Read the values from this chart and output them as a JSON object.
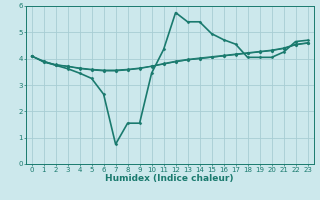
{
  "title": "",
  "xlabel": "Humidex (Indice chaleur)",
  "ylabel": "",
  "bg_color": "#cce8ec",
  "line_color": "#1a7a6e",
  "grid_color": "#a8cdd4",
  "xlim": [
    -0.5,
    23.5
  ],
  "ylim": [
    0,
    6
  ],
  "xticks": [
    0,
    1,
    2,
    3,
    4,
    5,
    6,
    7,
    8,
    9,
    10,
    11,
    12,
    13,
    14,
    15,
    16,
    17,
    18,
    19,
    20,
    21,
    22,
    23
  ],
  "yticks": [
    0,
    1,
    2,
    3,
    4,
    5,
    6
  ],
  "lines": [
    {
      "x": [
        0,
        1,
        2,
        3,
        4,
        5,
        6,
        7,
        8,
        9,
        10,
        11,
        12,
        13,
        14,
        15,
        16,
        17,
        18,
        19,
        20,
        21,
        22,
        23
      ],
      "y": [
        4.1,
        3.9,
        3.78,
        3.72,
        3.65,
        3.6,
        3.57,
        3.57,
        3.6,
        3.65,
        3.72,
        3.8,
        3.88,
        3.95,
        4.0,
        4.05,
        4.1,
        4.15,
        4.2,
        4.25,
        4.3,
        4.38,
        4.52,
        4.58
      ]
    },
    {
      "x": [
        0,
        1,
        2,
        3,
        4,
        5,
        6,
        7,
        8,
        9,
        10,
        11,
        12,
        13,
        14,
        15,
        16,
        17,
        18,
        19,
        20,
        21,
        22,
        23
      ],
      "y": [
        4.1,
        3.88,
        3.77,
        3.71,
        3.63,
        3.58,
        3.55,
        3.55,
        3.58,
        3.63,
        3.72,
        3.82,
        3.91,
        3.98,
        4.03,
        4.08,
        4.13,
        4.18,
        4.23,
        4.28,
        4.33,
        4.41,
        4.55,
        4.61
      ]
    },
    {
      "x": [
        0,
        1,
        2,
        3,
        4,
        5,
        6,
        7,
        8,
        9,
        10,
        11,
        12,
        13,
        14,
        15,
        16,
        17,
        18,
        19,
        20,
        21,
        22,
        23
      ],
      "y": [
        4.1,
        3.86,
        3.75,
        3.7,
        3.62,
        3.57,
        3.53,
        3.53,
        3.57,
        3.62,
        3.7,
        3.79,
        3.88,
        3.95,
        4.0,
        4.05,
        4.1,
        4.16,
        4.21,
        4.26,
        4.31,
        4.39,
        4.53,
        4.6
      ]
    },
    {
      "x": [
        0,
        1,
        2,
        3,
        4,
        5,
        6,
        7,
        8,
        9,
        10,
        11,
        12,
        13,
        14,
        15,
        16,
        17,
        18,
        19,
        20,
        21,
        22,
        23
      ],
      "y": [
        4.1,
        3.9,
        3.75,
        3.62,
        3.45,
        3.25,
        2.65,
        0.75,
        1.55,
        1.55,
        3.45,
        4.35,
        5.75,
        5.4,
        5.4,
        4.95,
        4.72,
        4.55,
        4.05,
        4.05,
        4.05,
        4.25,
        4.65,
        4.7
      ]
    }
  ]
}
